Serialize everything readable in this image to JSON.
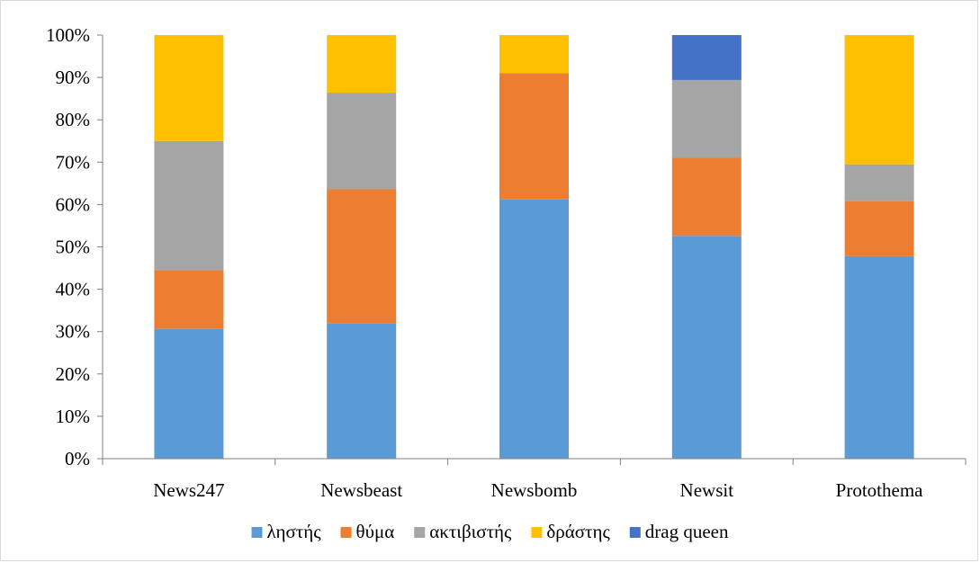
{
  "chart_data": {
    "type": "bar",
    "stacked": true,
    "percent": true,
    "categories": [
      "News247",
      "Newsbeast",
      "Newsbomb",
      "Newsit",
      "Protothema"
    ],
    "series": [
      {
        "name": "ληστής",
        "color": "#5b9bd5",
        "values": [
          30.6,
          32.0,
          61.3,
          52.6,
          47.8
        ]
      },
      {
        "name": "θύμα",
        "color": "#ed7d31",
        "values": [
          13.9,
          31.6,
          29.7,
          18.5,
          13.0
        ]
      },
      {
        "name": "ακτιβιστής",
        "color": "#a5a5a5",
        "values": [
          30.5,
          22.8,
          0,
          18.3,
          8.7
        ]
      },
      {
        "name": "δράστης",
        "color": "#ffc000",
        "values": [
          25.0,
          13.6,
          9.0,
          0,
          30.5
        ]
      },
      {
        "name": "drag queen",
        "color": "#4472c4",
        "values": [
          0,
          0,
          0,
          10.6,
          0
        ]
      }
    ],
    "yticks": [
      "0%",
      "10%",
      "20%",
      "30%",
      "40%",
      "50%",
      "60%",
      "70%",
      "80%",
      "90%",
      "100%"
    ],
    "ylim": [
      0,
      100
    ],
    "legend_position": "bottom",
    "grid": false
  }
}
